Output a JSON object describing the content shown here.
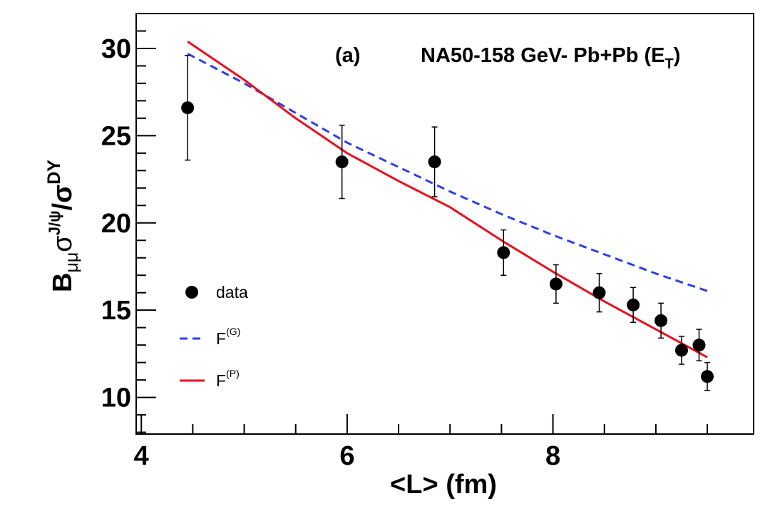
{
  "chart_data": {
    "type": "scatter",
    "title": "",
    "panel_label": "(a)",
    "experiment_label": {
      "main": "NA50-158 GeV- Pb+Pb (E",
      "sub": "T",
      "close": ")"
    },
    "xlabel": "<L> (fm)",
    "ylabel": {
      "B": "B",
      "mumu": "μμ",
      "sigma1": "σ",
      "jpsi": "J/ψ",
      "slash": "/σ",
      "dy": "DY"
    },
    "xlim": [
      3.95,
      9.95
    ],
    "ylim": [
      7.9,
      32.0
    ],
    "x_ticks": [
      4,
      6,
      8
    ],
    "x_tick_labels": [
      "4",
      "6",
      "8"
    ],
    "y_ticks": [
      10,
      15,
      20,
      25,
      30
    ],
    "y_tick_labels": [
      "10",
      "15",
      "20",
      "25",
      "30"
    ],
    "series": [
      {
        "name": "data",
        "kind": "points",
        "color": "#000000",
        "x": [
          4.45,
          5.95,
          6.85,
          7.52,
          8.03,
          8.45,
          8.78,
          9.05,
          9.25,
          9.42,
          9.5
        ],
        "y": [
          26.6,
          23.5,
          23.5,
          18.3,
          16.5,
          16.0,
          15.3,
          14.4,
          12.7,
          13.0,
          11.2
        ],
        "err": [
          3.0,
          2.1,
          2.0,
          1.3,
          1.1,
          1.1,
          1.0,
          1.0,
          0.8,
          0.9,
          0.8
        ]
      },
      {
        "name": "F",
        "sup": "(G)",
        "kind": "line",
        "dash": true,
        "color": "#2f3fe6",
        "x": [
          4.45,
          5.0,
          5.5,
          6.0,
          6.5,
          7.0,
          7.5,
          8.0,
          8.5,
          9.0,
          9.5
        ],
        "y": [
          29.7,
          28.0,
          26.3,
          24.6,
          23.2,
          21.8,
          20.5,
          19.3,
          18.2,
          17.1,
          16.1
        ]
      },
      {
        "name": "F",
        "sup": "(P)",
        "kind": "line",
        "dash": false,
        "color": "#e8101e",
        "x": [
          4.45,
          5.0,
          5.5,
          6.0,
          6.5,
          7.0,
          7.5,
          8.0,
          8.5,
          9.0,
          9.5
        ],
        "y": [
          30.4,
          28.2,
          26.0,
          24.0,
          22.4,
          20.9,
          19.0,
          17.2,
          15.5,
          13.9,
          12.3
        ]
      }
    ],
    "legend": {
      "position": "left-middle",
      "entries": [
        {
          "label": "data",
          "sup": ""
        },
        {
          "label": "F",
          "sup": "(G)"
        },
        {
          "label": "F",
          "sup": "(P)"
        }
      ]
    }
  }
}
